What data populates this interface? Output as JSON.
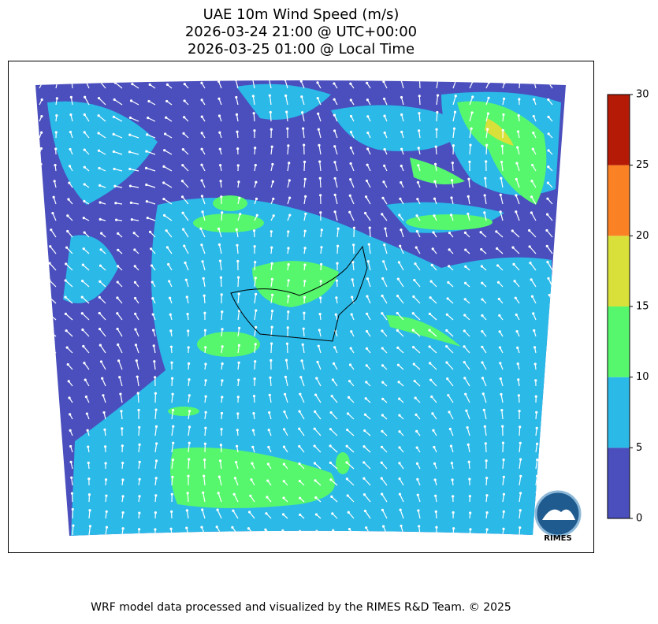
{
  "title": [
    "UAE 10m Wind Speed (m/s)",
    "2026-03-24 21:00 @ UTC+00:00",
    "2026-03-25 01:00 @ Local Time"
  ],
  "colorbar": {
    "ticks": [
      0,
      5,
      10,
      15,
      20,
      25,
      30
    ],
    "colors": [
      "#4a4fbd",
      "#2bb9e8",
      "#56f76d",
      "#d9e03a",
      "#fb8224",
      "#b41a05"
    ]
  },
  "logo": "RIMES",
  "footer": "WRF model data processed and visualized by the RIMES R&D Team. © 2025"
}
